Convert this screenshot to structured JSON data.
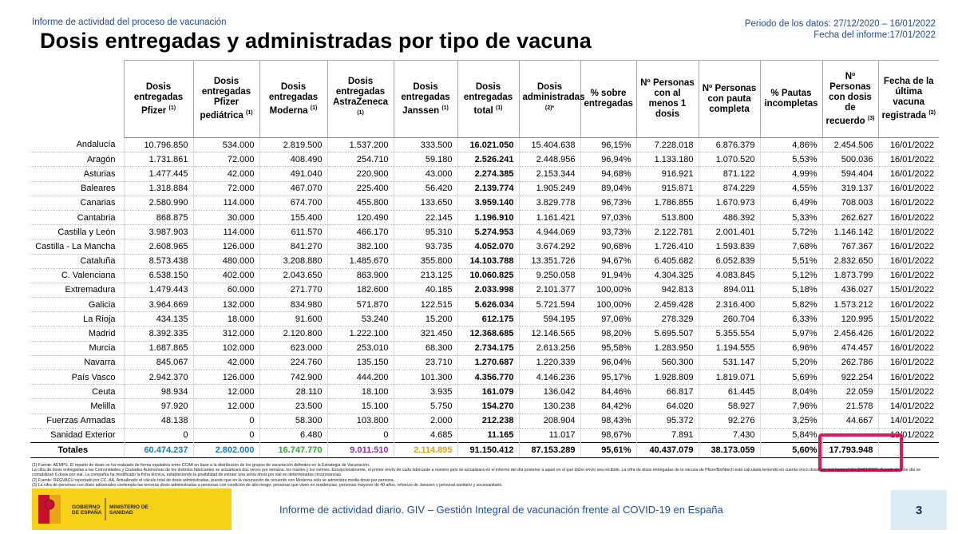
{
  "header": {
    "subtitle": "Informe de actividad del proceso de vacunación",
    "title": "Dosis entregadas y administradas por tipo de vacuna",
    "period": "Periodo de los datos: 27/12/2020 – 16/01/2022",
    "report_date": "Fecha del informe:17/01/2022"
  },
  "table": {
    "headers": [
      {
        "text": "Dosis entregadas Pfizer",
        "note": "(1)"
      },
      {
        "text": "Dosis entregadas Pfizer pediátrica",
        "note": "(1)"
      },
      {
        "text": "Dosis entregadas Moderna",
        "note": "(1)"
      },
      {
        "text": "Dosis entregadas AstraZeneca",
        "note": "(1)"
      },
      {
        "text": "Dosis entregadas Janssen",
        "note": "(1)"
      },
      {
        "text": "Dosis entregadas total",
        "note": "(1)"
      },
      {
        "text": "Dosis administradas",
        "note": "(2)*"
      },
      {
        "text": "% sobre entregadas"
      },
      {
        "text": "Nº Personas con al menos 1 dosis"
      },
      {
        "text": "Nº Personas con pauta completa"
      },
      {
        "text": "% Pautas incompletas"
      },
      {
        "text": "Nº Personas con dosis de recuerdo",
        "note": "(3)"
      },
      {
        "text": "Fecha de la última vacuna registrada",
        "note": "(2)"
      }
    ],
    "rows": [
      [
        "Andalucía",
        "10.796.850",
        "534.000",
        "2.819.500",
        "1.537.200",
        "333.500",
        "16.021.050",
        "15.404.638",
        "96,15%",
        "7.228.018",
        "6.876.379",
        "4,86%",
        "2.454.506",
        "16/01/2022"
      ],
      [
        "Aragón",
        "1.731.861",
        "72.000",
        "408.490",
        "254.710",
        "59.180",
        "2.526.241",
        "2.448.956",
        "96,94%",
        "1.133.180",
        "1.070.520",
        "5,53%",
        "500.036",
        "16/01/2022"
      ],
      [
        "Asturias",
        "1.477.445",
        "42.000",
        "491.040",
        "220.900",
        "43.000",
        "2.274.385",
        "2.153.344",
        "94,68%",
        "916.921",
        "871.122",
        "4,99%",
        "594.404",
        "16/01/2022"
      ],
      [
        "Baleares",
        "1.318.884",
        "72.000",
        "467.070",
        "225.400",
        "56.420",
        "2.139.774",
        "1.905.249",
        "89,04%",
        "915.871",
        "874.229",
        "4,55%",
        "319.137",
        "16/01/2022"
      ],
      [
        "Canarias",
        "2.580.990",
        "114.000",
        "674.700",
        "455.800",
        "133.650",
        "3.959.140",
        "3.829.778",
        "96,73%",
        "1.786.855",
        "1.670.973",
        "6,49%",
        "708.003",
        "16/01/2022"
      ],
      [
        "Cantabria",
        "868.875",
        "30.000",
        "155.400",
        "120.490",
        "22.145",
        "1.196.910",
        "1.161.421",
        "97,03%",
        "513.800",
        "486.392",
        "5,33%",
        "262.627",
        "16/01/2022"
      ],
      [
        "Castilla y León",
        "3.987.903",
        "114.000",
        "611.570",
        "466.170",
        "95.310",
        "5.274.953",
        "4.944.069",
        "93,73%",
        "2.122.781",
        "2.001.401",
        "5,72%",
        "1.146.142",
        "16/01/2022"
      ],
      [
        "Castilla - La Mancha",
        "2.608.965",
        "126.000",
        "841.270",
        "382.100",
        "93.735",
        "4.052.070",
        "3.674.292",
        "90,68%",
        "1.726.410",
        "1.593.839",
        "7,68%",
        "767.367",
        "16/01/2022"
      ],
      [
        "Cataluña",
        "8.573.438",
        "480.000",
        "3.208.880",
        "1.485.670",
        "355.800",
        "14.103.788",
        "13.351.726",
        "94,67%",
        "6.405.682",
        "6.052.839",
        "5,51%",
        "2.832.650",
        "16/01/2022"
      ],
      [
        "C. Valenciana",
        "6.538.150",
        "402.000",
        "2.043.650",
        "863.900",
        "213.125",
        "10.060.825",
        "9.250.058",
        "91,94%",
        "4.304.325",
        "4.083.845",
        "5,12%",
        "1.873.799",
        "16/01/2022"
      ],
      [
        "Extremadura",
        "1.479.443",
        "60.000",
        "271.770",
        "182.600",
        "40.185",
        "2.033.998",
        "2.101.377",
        "100,00%",
        "942.813",
        "894.011",
        "5,18%",
        "436.027",
        "15/01/2022"
      ],
      [
        "Galicia",
        "3.964.669",
        "132.000",
        "834.980",
        "571.870",
        "122.515",
        "5.626.034",
        "5.721.594",
        "100,00%",
        "2.459.428",
        "2.316.400",
        "5,82%",
        "1.573.212",
        "16/01/2022"
      ],
      [
        "La Rioja",
        "434.135",
        "18.000",
        "91.600",
        "53.240",
        "15.200",
        "612.175",
        "594.195",
        "97,06%",
        "278.329",
        "260.704",
        "6,33%",
        "120.995",
        "15/01/2022"
      ],
      [
        "Madrid",
        "8.392.335",
        "312.000",
        "2.120.800",
        "1.222.100",
        "321.450",
        "12.368.685",
        "12.146.565",
        "98,20%",
        "5.695.507",
        "5.355.554",
        "5,97%",
        "2.456.426",
        "16/01/2022"
      ],
      [
        "Murcia",
        "1.687.865",
        "102.000",
        "623.000",
        "253.010",
        "68.300",
        "2.734.175",
        "2.613.256",
        "95,58%",
        "1.283.950",
        "1.194.555",
        "6,96%",
        "474.457",
        "16/01/2022"
      ],
      [
        "Navarra",
        "845.067",
        "42.000",
        "224.760",
        "135.150",
        "23.710",
        "1.270.687",
        "1.220.339",
        "96,04%",
        "560.300",
        "531.147",
        "5,20%",
        "262.786",
        "16/01/2022"
      ],
      [
        "País Vasco",
        "2.942.370",
        "126.000",
        "742.900",
        "444.200",
        "101.300",
        "4.356.770",
        "4.146.236",
        "95,17%",
        "1.928.809",
        "1.819.071",
        "5,69%",
        "922.254",
        "16/01/2022"
      ],
      [
        "Ceuta",
        "98.934",
        "12.000",
        "28.110",
        "18.100",
        "3.935",
        "161.079",
        "136.042",
        "84,46%",
        "66.817",
        "61.445",
        "8,04%",
        "22.059",
        "15/01/2022"
      ],
      [
        "Melilla",
        "97.920",
        "12.000",
        "23.500",
        "15.100",
        "5.750",
        "154.270",
        "130.238",
        "84,42%",
        "64.020",
        "58.927",
        "7,96%",
        "21.578",
        "14/01/2022"
      ],
      [
        "Fuerzas Armadas",
        "48.138",
        "0",
        "58.300",
        "103.800",
        "2.000",
        "212.238",
        "208.904",
        "98,43%",
        "95.372",
        "92.276",
        "3,25%",
        "44.667",
        "14/01/2022"
      ],
      [
        "Sanidad Exterior",
        "0",
        "0",
        "6.480",
        "0",
        "4.685",
        "11.165",
        "11.017",
        "98,67%",
        "7.891",
        "7.430",
        "5,84%",
        null,
        "13/01/2022"
      ]
    ],
    "totals": {
      "label": "Totales",
      "cells": [
        "60.474.237",
        "2.802.000",
        "16.747.770",
        "9.011.510",
        "2.114.895",
        "91.150.412",
        "87.153.289",
        "95,61%",
        "40.437.079",
        "38.173.059",
        "5,60%",
        "17.793.948"
      ],
      "colors": [
        "#1a7fc4",
        "#1a7fc4",
        "#3aa53a",
        "#9a2fb8",
        "#e0a21a",
        "#000000",
        "#000000",
        "#000000",
        "#000000",
        "#000000",
        "#000000",
        "#000000"
      ]
    }
  },
  "footnotes": [
    "(1) Fuente: AEMPS. El reparto de dosis se ha realizado de forma equitativa entre CCAA en base a la distribución de los grupos de vacunación definidos en la Estrategia de Vacunación.",
    "La cifra de dosis entregadas a las Comunidades y Ciudades Autónomas de los distintos fabricantes se actualizará dos veces por semana, los martes y los viernes. Excepcionalmente, el primer envío de cada fabricante a nuestro país se actualizará en el informe del día posterior a aquel en el que dicho envío sea recibido. La cifra de dosis entregadas de la vacuna de Pfizer/BioNtech está calculada teniendo en cuenta cinco dosis por vial hasta el día 24/01/2021. A partir de este día se contabilizan 6 dosis por vial. La compañía ha modificado la ficha técnica, estableciendo la posibilidad de extraer una sexta dosis por vial en determinadas circunstancias.",
    "(2) Fuente: REGVACU reportado por CC. AA. Actualizado el cálculo total de dosis administradas, puesto que en la vacunación de recuerdo con Moderna sólo se administra media dosis por persona.",
    "(3) La cifra de personas con dosis adicionales contempla las terceras dosis administradas a personas con condición de alto riesgo, personas que viven en residencias, personas mayores de 40 años, refuerzo de Janssen y personal sanitario y sociosanitario."
  ],
  "footer": {
    "logo_line1": "GOBIERNO DE ESPAÑA",
    "logo_line2": "MINISTERIO DE SANIDAD",
    "text": "Informe de actividad diario. GIV – Gestión Integral de vacunación frente al COVID-19 en España",
    "page": "3"
  }
}
